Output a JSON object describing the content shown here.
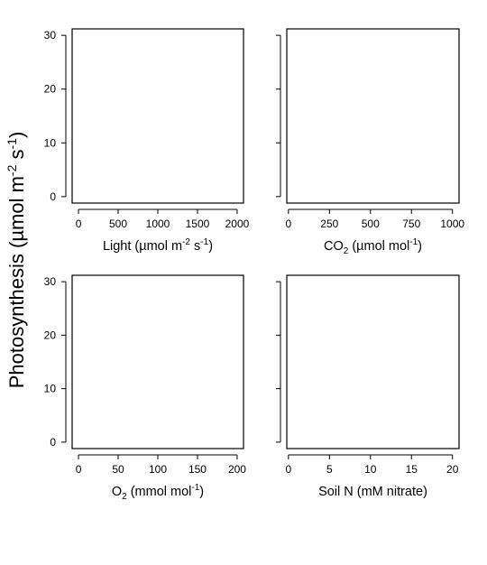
{
  "figure": {
    "ylabel_main": "Photosynthesis (µmol m",
    "ylabel_sup1": "-2",
    "ylabel_mid": " s",
    "ylabel_sup2": "-1",
    "ylabel_end": ")"
  },
  "chart_data": [
    {
      "type": "scatter",
      "xlabel": "Light (µmol m-2 s-1)",
      "x_ticks": [
        0,
        500,
        1000,
        1500,
        2000
      ],
      "xlim": [
        -80,
        2080
      ],
      "y_ticks": [
        0,
        10,
        20,
        30
      ],
      "ylim": [
        -1.2,
        31.2
      ],
      "series": []
    },
    {
      "type": "scatter",
      "xlabel": "CO2 (µmol mol-1)",
      "x_ticks": [
        0,
        250,
        500,
        750,
        1000
      ],
      "xlim": [
        -10,
        1040
      ],
      "y_ticks": [
        0,
        10,
        20,
        30
      ],
      "ylim": [
        -1.2,
        31.2
      ],
      "series": []
    },
    {
      "type": "scatter",
      "xlabel": "O2 (mmol mol-1)",
      "x_ticks": [
        0,
        50,
        100,
        150,
        200
      ],
      "xlim": [
        -8,
        208
      ],
      "y_ticks": [
        0,
        10,
        20,
        30
      ],
      "ylim": [
        -1.2,
        31.2
      ],
      "series": []
    },
    {
      "type": "scatter",
      "xlabel": "Soil N (mM nitrate)",
      "x_ticks": [
        0,
        5,
        10,
        15,
        20
      ],
      "xlim": [
        -0.2,
        20.8
      ],
      "y_ticks": [
        0,
        10,
        20,
        30
      ],
      "ylim": [
        -1.2,
        31.2
      ],
      "series": []
    }
  ],
  "xlabels_rich": [
    {
      "pre": "Light (µmol m",
      "s1": "-2",
      "mid": " s",
      "s2": "-1",
      "post": ")"
    },
    {
      "pre": "CO",
      "sub": "2",
      "mid2": " (µmol mol",
      "s2": "-1",
      "post": ")"
    },
    {
      "pre": "O",
      "sub": "2",
      "mid2": " (mmol mol",
      "s2": "-1",
      "post": ")"
    },
    {
      "pre": "Soil N (mM nitrate)"
    }
  ]
}
